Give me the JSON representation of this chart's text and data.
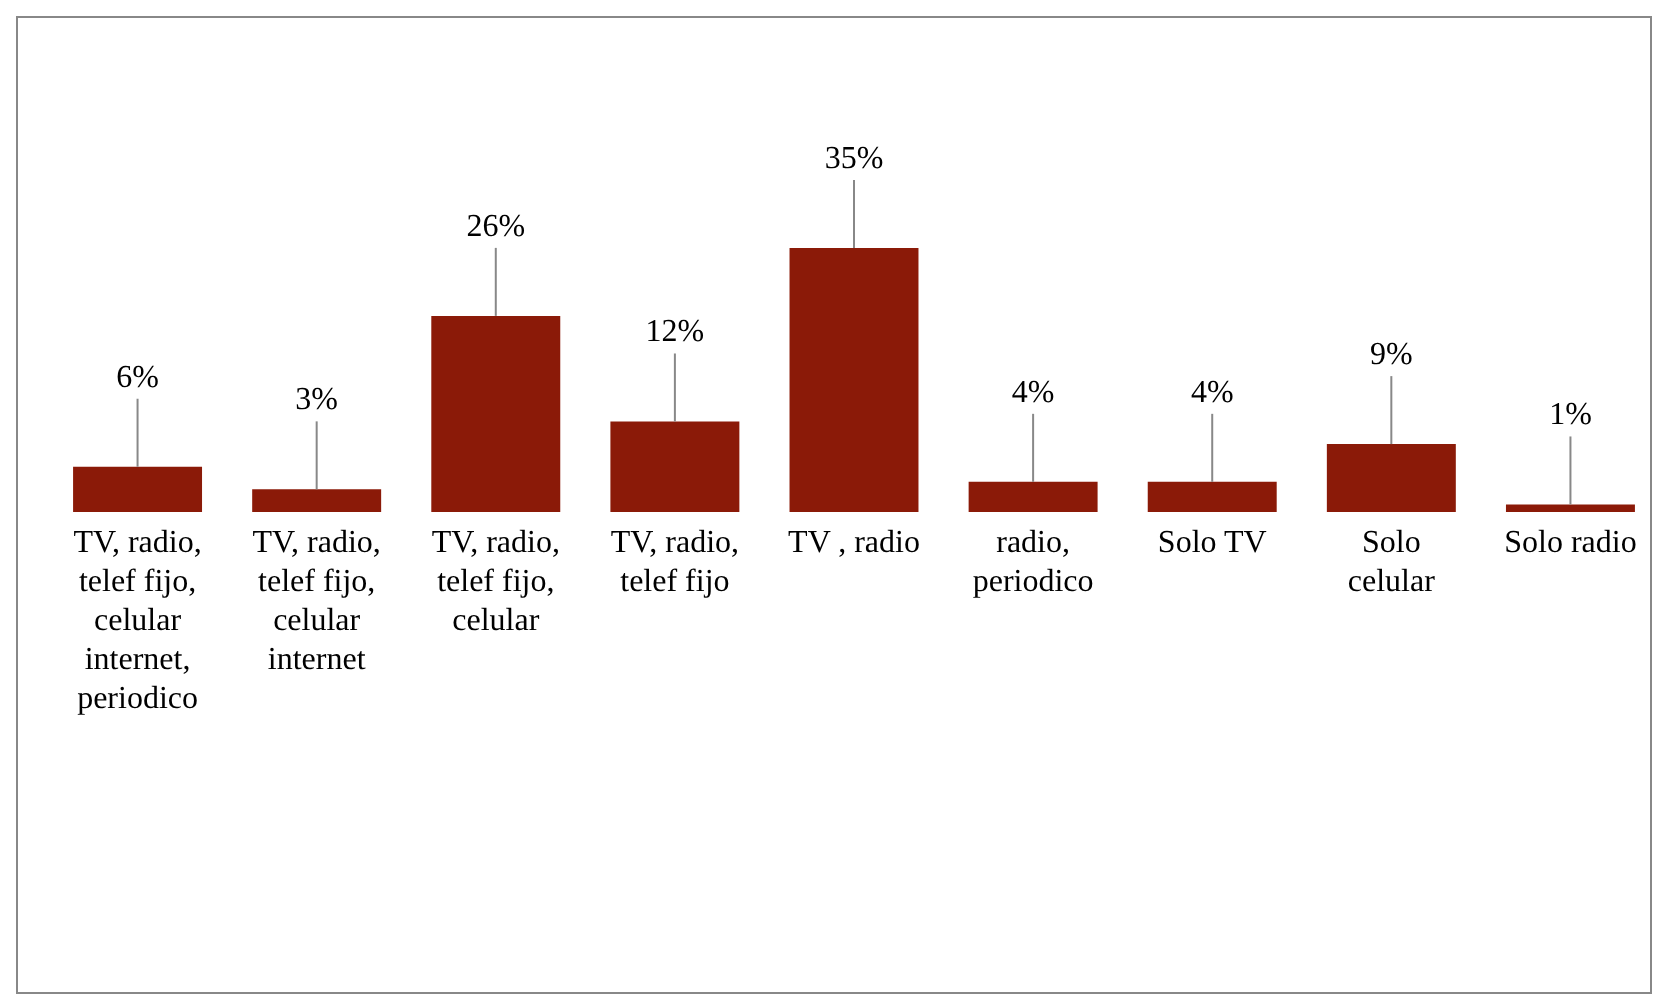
{
  "chart_data": {
    "type": "bar",
    "categories": [
      "TV, radio, telef fijo, celular internet, periodico",
      "TV, radio, telef fijo, celular internet",
      "TV, radio, telef fijo, celular",
      "TV, radio, telef fijo",
      "TV , radio",
      "radio, periodico",
      "Solo TV",
      "Solo celular",
      "Solo radio"
    ],
    "values": [
      6,
      3,
      26,
      12,
      35,
      4,
      4,
      9,
      1
    ],
    "value_labels": [
      "6%",
      "3%",
      "26%",
      "12%",
      "35%",
      "4%",
      "4%",
      "9%",
      "1%"
    ],
    "color": "#8b1a08",
    "tick_labels": "x",
    "grid": false,
    "legend": false
  }
}
